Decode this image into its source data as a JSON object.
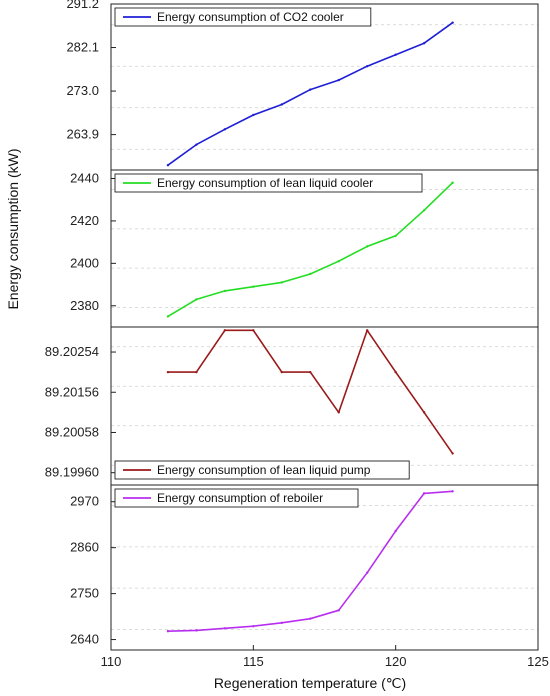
{
  "figure": {
    "xlabel": "Regeneration temperature (℃)",
    "ylabel": "Energy consumption (kW)",
    "x_ticks": [
      110,
      115,
      120,
      125
    ],
    "xlim": [
      110,
      125
    ]
  },
  "chart_data": [
    {
      "type": "line",
      "legend": "Energy consumption of CO2 cooler",
      "legend_position": "top-left",
      "color": "#1f1fd6",
      "ylim": [
        256.5,
        291.2
      ],
      "y_ticks": [
        263.9,
        273.0,
        282.1,
        291.2
      ],
      "y_tick_labels": [
        "263.9",
        "273.0",
        "282.1",
        "291.2"
      ],
      "x": [
        112,
        113,
        114,
        115,
        116,
        117,
        118,
        119,
        120,
        121,
        122
      ],
      "values": [
        257.5,
        261.8,
        265.0,
        268.0,
        270.2,
        273.3,
        275.3,
        278.2,
        280.6,
        283.0,
        287.3
      ]
    },
    {
      "type": "line",
      "legend": "Energy consumption of lean liquid cooler",
      "legend_position": "top-left",
      "color": "#22dd22",
      "ylim": [
        2370,
        2444
      ],
      "y_ticks": [
        2380,
        2400,
        2420,
        2440
      ],
      "y_tick_labels": [
        "2380",
        "2400",
        "2420",
        "2440"
      ],
      "x": [
        112,
        113,
        114,
        115,
        116,
        117,
        118,
        119,
        120,
        121,
        122
      ],
      "values": [
        2375,
        2383,
        2387,
        2389,
        2391,
        2395,
        2401,
        2408,
        2413,
        2425,
        2438
      ]
    },
    {
      "type": "line",
      "legend": "Energy consumption of lean liquid pump",
      "legend_position": "bottom-left",
      "color": "#9a1a1a",
      "ylim": [
        89.1993,
        89.20315
      ],
      "y_ticks": [
        89.1996,
        89.20058,
        89.20156,
        89.20254
      ],
      "y_tick_labels": [
        "89.19960",
        "89.20058",
        "89.20156",
        "89.20254"
      ],
      "x": [
        112,
        113,
        114,
        115,
        116,
        117,
        118,
        119,
        120,
        121,
        122
      ],
      "values": [
        89.20205,
        89.20205,
        89.20307,
        89.20307,
        89.20205,
        89.20205,
        89.20107,
        89.20307,
        89.20205,
        89.20107,
        89.20007
      ]
    },
    {
      "type": "line",
      "legend": "Energy consumption of reboiler",
      "legend_position": "top-left",
      "color": "#b82ef0",
      "ylim": [
        2615,
        3010
      ],
      "y_ticks": [
        2640,
        2750,
        2860,
        2970
      ],
      "y_tick_labels": [
        "2640",
        "2750",
        "2860",
        "2970"
      ],
      "x": [
        112,
        113,
        114,
        115,
        116,
        117,
        118,
        119,
        120,
        121,
        122
      ],
      "values": [
        2660,
        2662,
        2667,
        2672,
        2680,
        2690,
        2710,
        2800,
        2900,
        2990,
        2995
      ]
    }
  ]
}
